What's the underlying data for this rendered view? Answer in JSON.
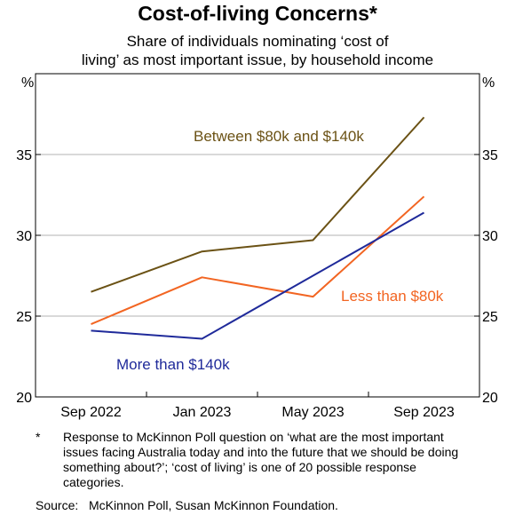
{
  "chart_data": {
    "type": "line",
    "title": "Cost-of-living Concerns*",
    "subtitle_lines": [
      "Share of individuals nominating ‘cost of",
      "living’ as most important issue, by household income"
    ],
    "y_unit_left": "%",
    "y_unit_right": "%",
    "ylim": [
      20,
      40
    ],
    "yticks": [
      20,
      25,
      30,
      35
    ],
    "categories": [
      "Sep 2022",
      "Jan 2023",
      "May 2023",
      "Sep 2023"
    ],
    "grid": true,
    "series": [
      {
        "name": "Between $80k and $140k",
        "color": "#6b5215",
        "values": [
          26.5,
          29.0,
          29.7,
          37.3
        ]
      },
      {
        "name": "Less than $80k",
        "color": "#f26522",
        "values": [
          24.5,
          27.4,
          26.2,
          32.4
        ]
      },
      {
        "name": "More than $140k",
        "color": "#1f2a9a",
        "values": [
          24.1,
          23.6,
          27.5,
          31.4
        ]
      }
    ]
  },
  "footnote": {
    "marker": "*",
    "text": "Response to McKinnon Poll question on ‘what are the most important issues facing Australia today and into the future that we should be doing something about?’; ‘cost of living’ is one of 20 possible response categories."
  },
  "source": {
    "label": "Source:",
    "text": "McKinnon Poll, Susan McKinnon Foundation."
  }
}
